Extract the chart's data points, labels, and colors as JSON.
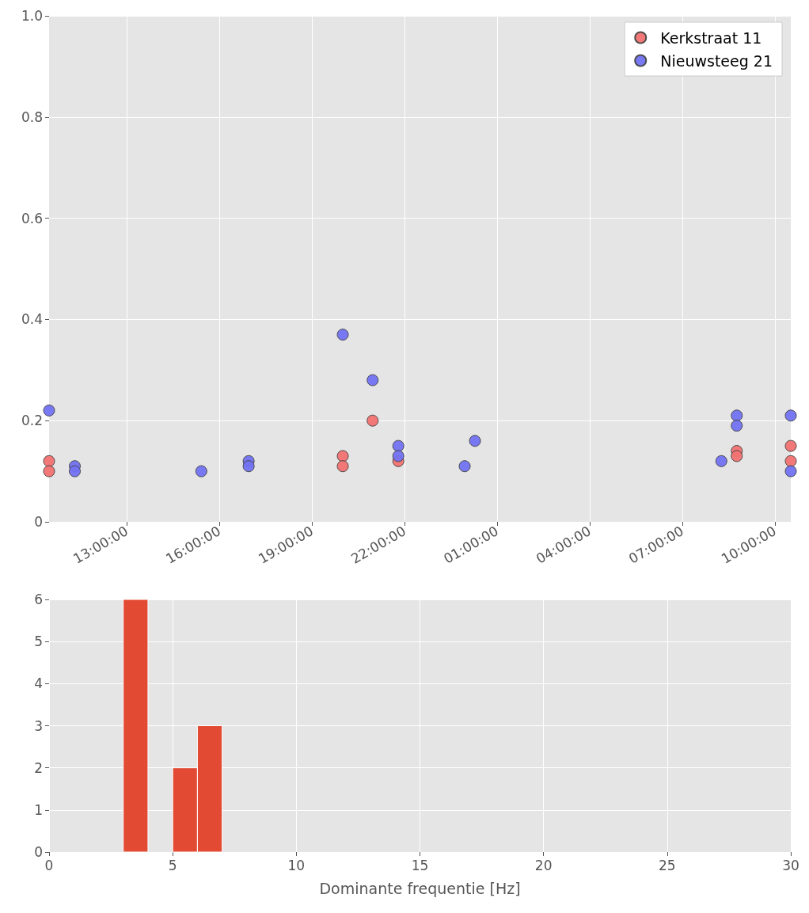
{
  "chart_data": [
    {
      "type": "scatter",
      "xlim": [
        "--01-01T10:29",
        "--01-02T10:31"
      ],
      "ylim": [
        0,
        1
      ],
      "xticks": [
        {
          "value": "--01-01T13:00",
          "label": "13:00:00"
        },
        {
          "value": "--01-01T16:00",
          "label": "16:00:00"
        },
        {
          "value": "--01-01T19:00",
          "label": "19:00:00"
        },
        {
          "value": "--01-01T22:00",
          "label": "22:00:00"
        },
        {
          "value": "--01-02T01:00",
          "label": "01:00:00"
        },
        {
          "value": "--01-02T04:00",
          "label": "04:00:00"
        },
        {
          "value": "--01-02T07:00",
          "label": "07:00:00"
        },
        {
          "value": "--01-02T10:00",
          "label": "10:00:00"
        }
      ],
      "yticks": [
        0,
        {
          "value": 0.2,
          "label": "0.2"
        },
        {
          "value": 0.4,
          "label": "0.4"
        },
        {
          "value": 0.6,
          "label": "0.6"
        },
        {
          "value": 0.8,
          "label": "0.8"
        },
        {
          "value": 1,
          "label": "1.0"
        }
      ],
      "grid": true,
      "legend": "top right",
      "marker": "circle",
      "series": [
        {
          "name": "Kerkstraat 11",
          "color": "#f27272",
          "x": [
            "--01-01T10:29",
            "--01-01T10:29",
            "--01-01T20:00",
            "--01-01T20:00",
            "--01-01T20:58",
            "--01-01T21:48",
            "--01-02T08:46",
            "--01-02T08:46",
            "--01-02T10:31",
            "--01-02T10:31"
          ],
          "values": [
            0.12,
            0.1,
            0.13,
            0.11,
            0.2,
            0.12,
            0.14,
            0.13,
            0.15,
            0.12
          ]
        },
        {
          "name": "Nieuwsteeg 21",
          "color": "#7272f2",
          "x": [
            "--01-01T10:29",
            "--01-01T11:19",
            "--01-01T11:19",
            "--01-01T15:25",
            "--01-01T16:57",
            "--01-01T16:57",
            "--01-01T20:00",
            "--01-01T20:58",
            "--01-01T21:48",
            "--01-01T21:48",
            "--01-01T23:57",
            "--01-02T00:17",
            "--01-02T08:16",
            "--01-02T08:46",
            "--01-02T08:46",
            "--01-02T10:31",
            "--01-02T10:31"
          ],
          "values": [
            0.22,
            0.11,
            0.1,
            0.1,
            0.12,
            0.11,
            0.37,
            0.28,
            0.15,
            0.13,
            0.11,
            0.16,
            0.12,
            0.21,
            0.19,
            0.21,
            0.1
          ]
        }
      ]
    },
    {
      "type": "histogram",
      "xlabel": "Dominante frequentie [Hz]",
      "bins": [
        3,
        4,
        5,
        6,
        7
      ],
      "values": [
        6,
        0,
        2,
        3
      ],
      "color": "#e24a33",
      "xlim": [
        0,
        30
      ],
      "xticks": [
        0,
        5,
        10,
        15,
        20,
        25,
        30
      ],
      "ylim": [
        0,
        6
      ],
      "yticks": [
        0,
        1,
        2,
        3,
        4,
        5,
        6
      ],
      "grid": true
    }
  ]
}
